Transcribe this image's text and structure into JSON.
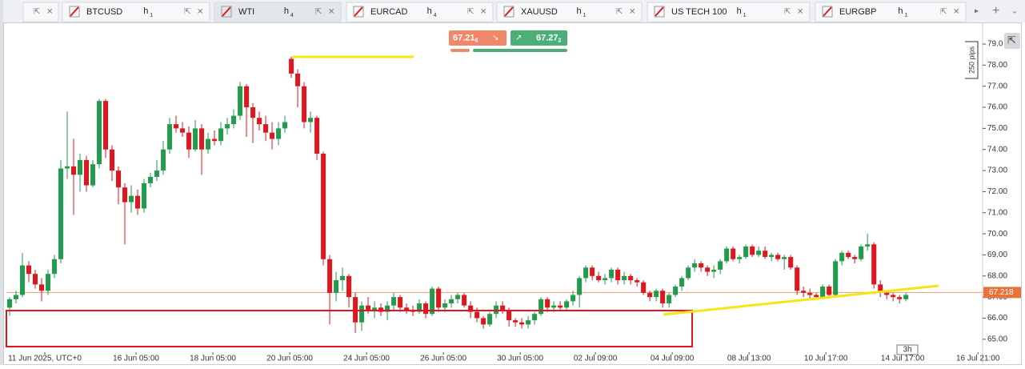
{
  "tabs": [
    {
      "symbol": "BTCUSD",
      "timeframe": "h",
      "period": "1"
    },
    {
      "symbol": "WTI",
      "timeframe": "h",
      "period": "4"
    },
    {
      "symbol": "EURCAD",
      "timeframe": "h",
      "period": "4"
    },
    {
      "symbol": "XAUUSD",
      "timeframe": "h",
      "period": "1"
    },
    {
      "symbol": "US TECH 100",
      "timeframe": "h",
      "period": "1"
    },
    {
      "symbol": "EURGBP",
      "timeframe": "h",
      "period": "1"
    }
  ],
  "prices": {
    "sell": "67.21",
    "sell_sub": "8",
    "buy": "67.27",
    "buy_sub": "2"
  },
  "ruler": "250 pips",
  "interval": "3h",
  "chart_data": {
    "type": "candlestick",
    "up_color": "#1f9d4c",
    "down_color": "#e3141b",
    "last_price": 67.218,
    "last_price_color": "#e8743b",
    "xlim": [
      -0.5,
      151.6
    ],
    "ylim": [
      64.5,
      79.76
    ],
    "xticks": [
      {
        "value": 5.5,
        "label": "11 Jun 2025, UTC+0"
      },
      {
        "value": 19.75,
        "label": "16 Jun 05:00"
      },
      {
        "value": 31.75,
        "label": "18 Jun 05:00"
      },
      {
        "value": 43.75,
        "label": "20 Jun 05:00"
      },
      {
        "value": 55.75,
        "label": "24 Jun 05:00"
      },
      {
        "value": 67.75,
        "label": "26 Jun 05:00"
      },
      {
        "value": 79.75,
        "label": "30 Jun 05:00"
      },
      {
        "value": 91.5,
        "label": "02 Jul 09:00"
      },
      {
        "value": 103.5,
        "label": "04 Jul 09:00"
      },
      {
        "value": 115.5,
        "label": "08 Jul 13:00"
      },
      {
        "value": 127.5,
        "label": "10 Jul 17:00"
      },
      {
        "value": 139.5,
        "label": "14 Jul 17:00"
      },
      {
        "value": 151.25,
        "label": "16 Jul 21:00"
      }
    ],
    "yticks": [
      {
        "value": 65,
        "label": "65.00"
      },
      {
        "value": 66,
        "label": "66.00"
      },
      {
        "value": 67,
        "label": "67.00"
      },
      {
        "value": 68,
        "label": "68.00"
      },
      {
        "value": 69,
        "label": "69.00"
      },
      {
        "value": 70,
        "label": "70.00"
      },
      {
        "value": 71,
        "label": "71.00"
      },
      {
        "value": 72,
        "label": "72.00"
      },
      {
        "value": 73,
        "label": "73.00"
      },
      {
        "value": 74,
        "label": "74.00"
      },
      {
        "value": 75,
        "label": "75.00"
      },
      {
        "value": 76,
        "label": "76.00"
      },
      {
        "value": 77,
        "label": "77.00"
      },
      {
        "value": 78,
        "label": "78.00"
      },
      {
        "value": 79,
        "label": "79.0"
      }
    ],
    "candles": [
      [
        66.5,
        67.0,
        66.1,
        66.9
      ],
      [
        66.9,
        67.3,
        66.7,
        67.1
      ],
      [
        67.1,
        69.1,
        67.0,
        68.5
      ],
      [
        68.5,
        68.7,
        67.7,
        68.1
      ],
      [
        68.1,
        68.3,
        67.4,
        67.6
      ],
      [
        67.6,
        67.9,
        66.8,
        67.3
      ],
      [
        67.3,
        68.3,
        67.1,
        68.1
      ],
      [
        68.1,
        69.0,
        67.9,
        68.8
      ],
      [
        68.8,
        73.5,
        68.6,
        73.1
      ],
      [
        73.1,
        75.8,
        72.6,
        73.2
      ],
      [
        73.2,
        74.5,
        70.9,
        72.8
      ],
      [
        72.8,
        73.8,
        72.0,
        73.5
      ],
      [
        73.5,
        73.7,
        72.0,
        72.3
      ],
      [
        72.3,
        73.5,
        72.2,
        73.3
      ],
      [
        73.3,
        76.4,
        73.1,
        76.3
      ],
      [
        76.3,
        76.4,
        73.6,
        74.0
      ],
      [
        74.0,
        74.2,
        72.5,
        73.0
      ],
      [
        73.0,
        73.2,
        71.4,
        72.2
      ],
      [
        72.2,
        72.4,
        69.5,
        71.5
      ],
      [
        71.5,
        72.3,
        71.0,
        71.8
      ],
      [
        71.8,
        72.1,
        70.9,
        71.2
      ],
      [
        71.2,
        72.6,
        71.0,
        72.4
      ],
      [
        72.4,
        72.9,
        72.2,
        72.7
      ],
      [
        72.7,
        73.5,
        72.5,
        73.0
      ],
      [
        73.0,
        74.4,
        72.8,
        74.0
      ],
      [
        74.0,
        75.5,
        73.8,
        75.2
      ],
      [
        75.2,
        75.6,
        74.8,
        75.0
      ],
      [
        75.0,
        75.3,
        74.6,
        74.8
      ],
      [
        74.8,
        75.1,
        73.6,
        74.0
      ],
      [
        74.0,
        75.4,
        73.9,
        75.0
      ],
      [
        75.0,
        75.2,
        72.8,
        74.0
      ],
      [
        74.0,
        74.8,
        73.8,
        74.5
      ],
      [
        74.5,
        74.9,
        74.2,
        74.4
      ],
      [
        74.4,
        75.3,
        74.2,
        75.0
      ],
      [
        75.0,
        75.5,
        74.7,
        75.2
      ],
      [
        75.2,
        75.9,
        75.0,
        75.6
      ],
      [
        75.6,
        77.2,
        75.4,
        77.0
      ],
      [
        77.0,
        77.1,
        74.6,
        76.0
      ],
      [
        76.0,
        76.2,
        74.3,
        75.5
      ],
      [
        75.5,
        75.8,
        74.9,
        75.2
      ],
      [
        75.2,
        75.6,
        74.4,
        74.8
      ],
      [
        74.8,
        75.3,
        74.0,
        74.5
      ],
      [
        74.5,
        75.3,
        74.2,
        75.0
      ],
      [
        75.0,
        75.6,
        74.8,
        75.3
      ],
      [
        78.3,
        78.4,
        77.4,
        77.6
      ],
      [
        77.6,
        77.8,
        76.0,
        77.0
      ],
      [
        77.0,
        77.2,
        75.0,
        75.3
      ],
      [
        75.3,
        75.8,
        74.8,
        75.5
      ],
      [
        75.5,
        75.6,
        73.5,
        73.8
      ],
      [
        73.8,
        73.9,
        68.5,
        68.8
      ],
      [
        68.8,
        69.0,
        65.7,
        67.2
      ],
      [
        67.2,
        68.2,
        66.8,
        67.8
      ],
      [
        67.8,
        68.4,
        67.3,
        68.0
      ],
      [
        68.0,
        68.1,
        66.5,
        67.0
      ],
      [
        67.0,
        67.2,
        65.3,
        65.8
      ],
      [
        65.8,
        66.8,
        65.4,
        66.6
      ],
      [
        66.6,
        67.0,
        66.2,
        66.4
      ],
      [
        66.4,
        66.8,
        66.0,
        66.5
      ],
      [
        66.5,
        66.7,
        66.1,
        66.3
      ],
      [
        66.3,
        66.8,
        65.9,
        66.6
      ],
      [
        66.6,
        67.2,
        66.4,
        67.0
      ],
      [
        67.0,
        67.1,
        66.3,
        66.5
      ],
      [
        66.5,
        66.7,
        66.2,
        66.4
      ],
      [
        66.4,
        66.6,
        66.1,
        66.3
      ],
      [
        66.3,
        66.9,
        66.2,
        66.7
      ],
      [
        66.7,
        66.8,
        66.0,
        66.2
      ],
      [
        66.2,
        67.5,
        66.1,
        67.4
      ],
      [
        67.4,
        67.5,
        66.3,
        66.5
      ],
      [
        66.5,
        66.9,
        66.3,
        66.7
      ],
      [
        66.7,
        67.1,
        66.5,
        66.9
      ],
      [
        66.9,
        67.2,
        66.7,
        67.1
      ],
      [
        67.1,
        67.2,
        66.5,
        66.6
      ],
      [
        66.6,
        66.8,
        66.0,
        66.3
      ],
      [
        66.3,
        66.5,
        65.8,
        66.0
      ],
      [
        66.0,
        66.1,
        65.5,
        65.7
      ],
      [
        65.7,
        66.3,
        65.6,
        66.2
      ],
      [
        66.2,
        66.8,
        66.0,
        66.6
      ],
      [
        66.6,
        66.8,
        66.2,
        66.4
      ],
      [
        66.4,
        66.5,
        65.6,
        65.9
      ],
      [
        65.9,
        66.0,
        65.6,
        65.8
      ],
      [
        65.8,
        66.0,
        65.5,
        65.7
      ],
      [
        65.7,
        66.1,
        65.5,
        65.9
      ],
      [
        65.9,
        66.3,
        65.7,
        66.2
      ],
      [
        66.2,
        67.0,
        66.1,
        66.9
      ],
      [
        66.9,
        67.0,
        66.3,
        66.5
      ],
      [
        66.5,
        66.8,
        66.3,
        66.6
      ],
      [
        66.6,
        66.8,
        66.4,
        66.5
      ],
      [
        66.5,
        66.9,
        66.4,
        66.8
      ],
      [
        66.8,
        67.3,
        66.6,
        67.1
      ],
      [
        67.1,
        68.0,
        66.5,
        67.9
      ],
      [
        67.9,
        68.5,
        67.7,
        68.4
      ],
      [
        68.4,
        68.5,
        67.8,
        68.0
      ],
      [
        68.0,
        68.2,
        67.7,
        67.8
      ],
      [
        67.8,
        68.1,
        67.6,
        67.9
      ],
      [
        67.9,
        68.4,
        67.7,
        68.3
      ],
      [
        68.3,
        68.4,
        67.6,
        67.8
      ],
      [
        67.8,
        68.2,
        67.6,
        68.0
      ],
      [
        68.0,
        68.1,
        67.6,
        67.8
      ],
      [
        67.8,
        67.9,
        67.5,
        67.7
      ],
      [
        67.7,
        67.8,
        67.1,
        67.2
      ],
      [
        67.2,
        67.3,
        66.8,
        67.0
      ],
      [
        67.0,
        67.4,
        66.8,
        67.3
      ],
      [
        67.3,
        67.4,
        66.5,
        66.7
      ],
      [
        66.7,
        67.2,
        66.5,
        67.1
      ],
      [
        67.1,
        67.6,
        67.0,
        67.5
      ],
      [
        67.5,
        68.0,
        67.3,
        67.9
      ],
      [
        67.9,
        68.5,
        67.8,
        68.4
      ],
      [
        68.4,
        68.8,
        68.2,
        68.6
      ],
      [
        68.6,
        68.7,
        68.2,
        68.4
      ],
      [
        68.4,
        68.5,
        68.0,
        68.2
      ],
      [
        68.2,
        68.5,
        67.9,
        68.3
      ],
      [
        68.3,
        68.8,
        68.1,
        68.7
      ],
      [
        68.7,
        69.4,
        68.6,
        69.3
      ],
      [
        69.3,
        69.4,
        68.7,
        68.8
      ],
      [
        68.8,
        69.0,
        68.6,
        68.9
      ],
      [
        68.9,
        69.5,
        68.8,
        69.4
      ],
      [
        69.4,
        69.5,
        68.9,
        69.0
      ],
      [
        69.0,
        69.4,
        68.9,
        69.2
      ],
      [
        69.2,
        69.4,
        68.8,
        68.9
      ],
      [
        68.9,
        69.1,
        68.7,
        69.0
      ],
      [
        69.0,
        69.1,
        68.7,
        68.8
      ],
      [
        68.8,
        69.0,
        68.3,
        68.9
      ],
      [
        68.9,
        69.0,
        68.3,
        68.4
      ],
      [
        68.4,
        68.5,
        67.1,
        67.3
      ],
      [
        67.3,
        67.5,
        67.0,
        67.2
      ],
      [
        67.2,
        67.4,
        66.9,
        67.1
      ],
      [
        67.1,
        67.2,
        66.9,
        67.0
      ],
      [
        67.0,
        67.6,
        66.9,
        67.5
      ],
      [
        67.5,
        67.6,
        67.0,
        67.1
      ],
      [
        67.1,
        68.8,
        67.0,
        68.7
      ],
      [
        68.7,
        69.2,
        68.5,
        69.1
      ],
      [
        69.1,
        69.2,
        68.8,
        68.9
      ],
      [
        68.9,
        69.0,
        68.6,
        68.8
      ],
      [
        68.8,
        69.5,
        68.7,
        69.4
      ],
      [
        69.4,
        70.0,
        69.2,
        69.5
      ],
      [
        69.5,
        69.6,
        67.4,
        67.6
      ],
      [
        67.6,
        67.8,
        67.0,
        67.2
      ],
      [
        67.2,
        67.3,
        66.9,
        67.1
      ],
      [
        67.1,
        67.2,
        66.8,
        67.0
      ],
      [
        67.0,
        67.1,
        66.7,
        66.9
      ],
      [
        66.9,
        67.2,
        66.8,
        67.1
      ]
    ]
  }
}
